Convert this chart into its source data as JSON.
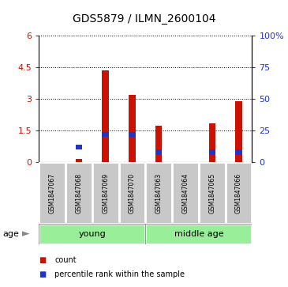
{
  "title": "GDS5879 / ILMN_2600104",
  "samples": [
    "GSM1847067",
    "GSM1847068",
    "GSM1847069",
    "GSM1847070",
    "GSM1847063",
    "GSM1847064",
    "GSM1847065",
    "GSM1847066"
  ],
  "count_values": [
    0.0,
    0.15,
    4.35,
    3.2,
    1.75,
    0.0,
    1.85,
    2.9
  ],
  "percentile_values_pct": [
    0.0,
    12.0,
    22.0,
    22.0,
    8.0,
    0.0,
    8.0,
    8.0
  ],
  "ylim_left": [
    0,
    6
  ],
  "ylim_right": [
    0,
    100
  ],
  "yticks_left": [
    0,
    1.5,
    3.0,
    4.5,
    6.0
  ],
  "ytick_labels_left": [
    "0",
    "1.5",
    "3",
    "4.5",
    "6"
  ],
  "yticks_right": [
    0,
    25,
    50,
    75,
    100
  ],
  "ytick_labels_right": [
    "0",
    "25",
    "50",
    "75",
    "100%"
  ],
  "bar_color_red": "#cc1100",
  "bar_color_blue": "#2233cc",
  "bar_width": 0.25,
  "sample_box_color": "#c8c8c8",
  "group_color": "#99ee99",
  "groups": [
    {
      "label": "young",
      "start": 0,
      "end": 3
    },
    {
      "label": "middle age",
      "start": 4,
      "end": 7
    }
  ],
  "age_label": "age",
  "legend_count_label": "count",
  "legend_percentile_label": "percentile rank within the sample",
  "title_fontsize": 10,
  "left_axis_color": "#cc1100",
  "right_axis_color": "#2233cc"
}
